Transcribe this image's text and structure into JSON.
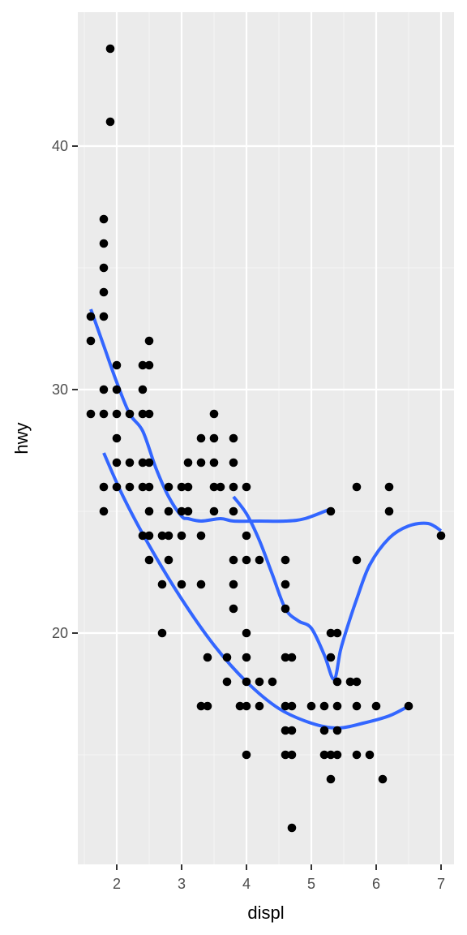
{
  "chart_data": {
    "type": "scatter",
    "title": "",
    "xlabel": "displ",
    "ylabel": "hwy",
    "xlim": [
      1.4,
      7.2
    ],
    "ylim": [
      10.5,
      45.5
    ],
    "x_ticks": [
      2,
      3,
      4,
      5,
      6,
      7
    ],
    "x_tick_labels": [
      "2",
      "3",
      "4",
      "5",
      "6",
      "7"
    ],
    "x_minor_ticks": [
      1.5,
      2.5,
      3.5,
      4.5,
      5.5,
      6.5
    ],
    "y_ticks": [
      20,
      30,
      40
    ],
    "y_tick_labels": [
      "20",
      "30",
      "40"
    ],
    "y_minor_ticks": [
      15,
      25,
      35
    ],
    "grid": true,
    "legend": "none",
    "colors": {
      "panel_background": "#ebebeb",
      "grid_major": "#ffffff",
      "grid_minor": "#f5f5f5",
      "point": "#000000",
      "smooth_line": "#3366ff",
      "tick": "#333333",
      "tick_label": "#4d4d4d"
    },
    "points": [
      [
        1.6,
        33
      ],
      [
        1.6,
        32
      ],
      [
        1.6,
        29
      ],
      [
        1.8,
        37
      ],
      [
        1.8,
        36
      ],
      [
        1.8,
        35
      ],
      [
        1.8,
        34
      ],
      [
        1.8,
        33
      ],
      [
        1.8,
        30
      ],
      [
        1.8,
        29
      ],
      [
        1.8,
        26
      ],
      [
        1.8,
        25
      ],
      [
        1.9,
        44
      ],
      [
        1.9,
        41
      ],
      [
        2.0,
        31
      ],
      [
        2.0,
        30
      ],
      [
        2.0,
        29
      ],
      [
        2.0,
        28
      ],
      [
        2.0,
        27
      ],
      [
        2.0,
        26
      ],
      [
        2.2,
        29
      ],
      [
        2.2,
        27
      ],
      [
        2.2,
        26
      ],
      [
        2.4,
        31
      ],
      [
        2.4,
        30
      ],
      [
        2.4,
        29
      ],
      [
        2.4,
        27
      ],
      [
        2.4,
        26
      ],
      [
        2.4,
        24
      ],
      [
        2.5,
        32
      ],
      [
        2.5,
        31
      ],
      [
        2.5,
        29
      ],
      [
        2.5,
        27
      ],
      [
        2.5,
        26
      ],
      [
        2.5,
        25
      ],
      [
        2.5,
        24
      ],
      [
        2.5,
        23
      ],
      [
        2.7,
        24
      ],
      [
        2.7,
        22
      ],
      [
        2.7,
        20
      ],
      [
        2.8,
        26
      ],
      [
        2.8,
        25
      ],
      [
        2.8,
        24
      ],
      [
        2.8,
        23
      ],
      [
        3.0,
        26
      ],
      [
        3.0,
        25
      ],
      [
        3.0,
        24
      ],
      [
        3.0,
        22
      ],
      [
        3.1,
        27
      ],
      [
        3.1,
        26
      ],
      [
        3.1,
        25
      ],
      [
        3.3,
        28
      ],
      [
        3.3,
        27
      ],
      [
        3.3,
        24
      ],
      [
        3.3,
        22
      ],
      [
        3.3,
        17
      ],
      [
        3.4,
        19
      ],
      [
        3.4,
        17
      ],
      [
        3.5,
        29
      ],
      [
        3.5,
        28
      ],
      [
        3.5,
        27
      ],
      [
        3.5,
        26
      ],
      [
        3.5,
        25
      ],
      [
        3.6,
        26
      ],
      [
        3.7,
        19
      ],
      [
        3.7,
        18
      ],
      [
        3.8,
        28
      ],
      [
        3.8,
        27
      ],
      [
        3.8,
        26
      ],
      [
        3.8,
        25
      ],
      [
        3.8,
        23
      ],
      [
        3.8,
        22
      ],
      [
        3.8,
        21
      ],
      [
        3.9,
        17
      ],
      [
        4.0,
        26
      ],
      [
        4.0,
        24
      ],
      [
        4.0,
        23
      ],
      [
        4.0,
        20
      ],
      [
        4.0,
        19
      ],
      [
        4.0,
        18
      ],
      [
        4.0,
        17
      ],
      [
        4.0,
        15
      ],
      [
        4.2,
        23
      ],
      [
        4.2,
        18
      ],
      [
        4.2,
        17
      ],
      [
        4.4,
        18
      ],
      [
        4.6,
        23
      ],
      [
        4.6,
        22
      ],
      [
        4.6,
        21
      ],
      [
        4.6,
        19
      ],
      [
        4.6,
        17
      ],
      [
        4.6,
        16
      ],
      [
        4.6,
        15
      ],
      [
        4.7,
        19
      ],
      [
        4.7,
        17
      ],
      [
        4.7,
        16
      ],
      [
        4.7,
        15
      ],
      [
        4.7,
        12
      ],
      [
        5.0,
        17
      ],
      [
        5.2,
        17
      ],
      [
        5.2,
        16
      ],
      [
        5.2,
        15
      ],
      [
        5.3,
        25
      ],
      [
        5.3,
        20
      ],
      [
        5.3,
        19
      ],
      [
        5.3,
        15
      ],
      [
        5.3,
        14
      ],
      [
        5.4,
        20
      ],
      [
        5.4,
        18
      ],
      [
        5.4,
        17
      ],
      [
        5.4,
        16
      ],
      [
        5.4,
        15
      ],
      [
        5.6,
        18
      ],
      [
        5.7,
        26
      ],
      [
        5.7,
        23
      ],
      [
        5.7,
        18
      ],
      [
        5.7,
        17
      ],
      [
        5.7,
        15
      ],
      [
        5.9,
        15
      ],
      [
        6.0,
        17
      ],
      [
        6.1,
        14
      ],
      [
        6.2,
        26
      ],
      [
        6.2,
        25
      ],
      [
        6.5,
        17
      ],
      [
        7.0,
        24
      ]
    ],
    "smooth_lines": [
      {
        "x": [
          1.6,
          1.8,
          2.0,
          2.2,
          2.4,
          2.6,
          2.8,
          3.0,
          3.1,
          3.3,
          3.6,
          3.8,
          4.2,
          4.6,
          4.9,
          5.3
        ],
        "y": [
          33.3,
          31.8,
          30.3,
          29.0,
          28.3,
          26.8,
          25.6,
          24.8,
          24.7,
          24.6,
          24.7,
          24.6,
          24.6,
          24.6,
          24.7,
          25.1
        ]
      },
      {
        "x": [
          1.8,
          2.1,
          2.5,
          3.0,
          3.5,
          4.0,
          4.5,
          5.0,
          5.4,
          5.8,
          6.2,
          6.5
        ],
        "y": [
          27.4,
          25.6,
          23.6,
          21.4,
          19.5,
          18.0,
          16.9,
          16.3,
          16.1,
          16.3,
          16.6,
          17.0
        ]
      },
      {
        "x": [
          3.8,
          4.0,
          4.2,
          4.4,
          4.6,
          4.8,
          5.0,
          5.2,
          5.35,
          5.45,
          5.55,
          5.7,
          5.9,
          6.2,
          6.5,
          6.8,
          7.0
        ],
        "y": [
          25.6,
          24.9,
          23.8,
          22.4,
          21.0,
          20.5,
          20.2,
          19.1,
          18.1,
          19.3,
          20.2,
          21.4,
          22.8,
          23.9,
          24.4,
          24.5,
          24.2
        ]
      }
    ]
  }
}
